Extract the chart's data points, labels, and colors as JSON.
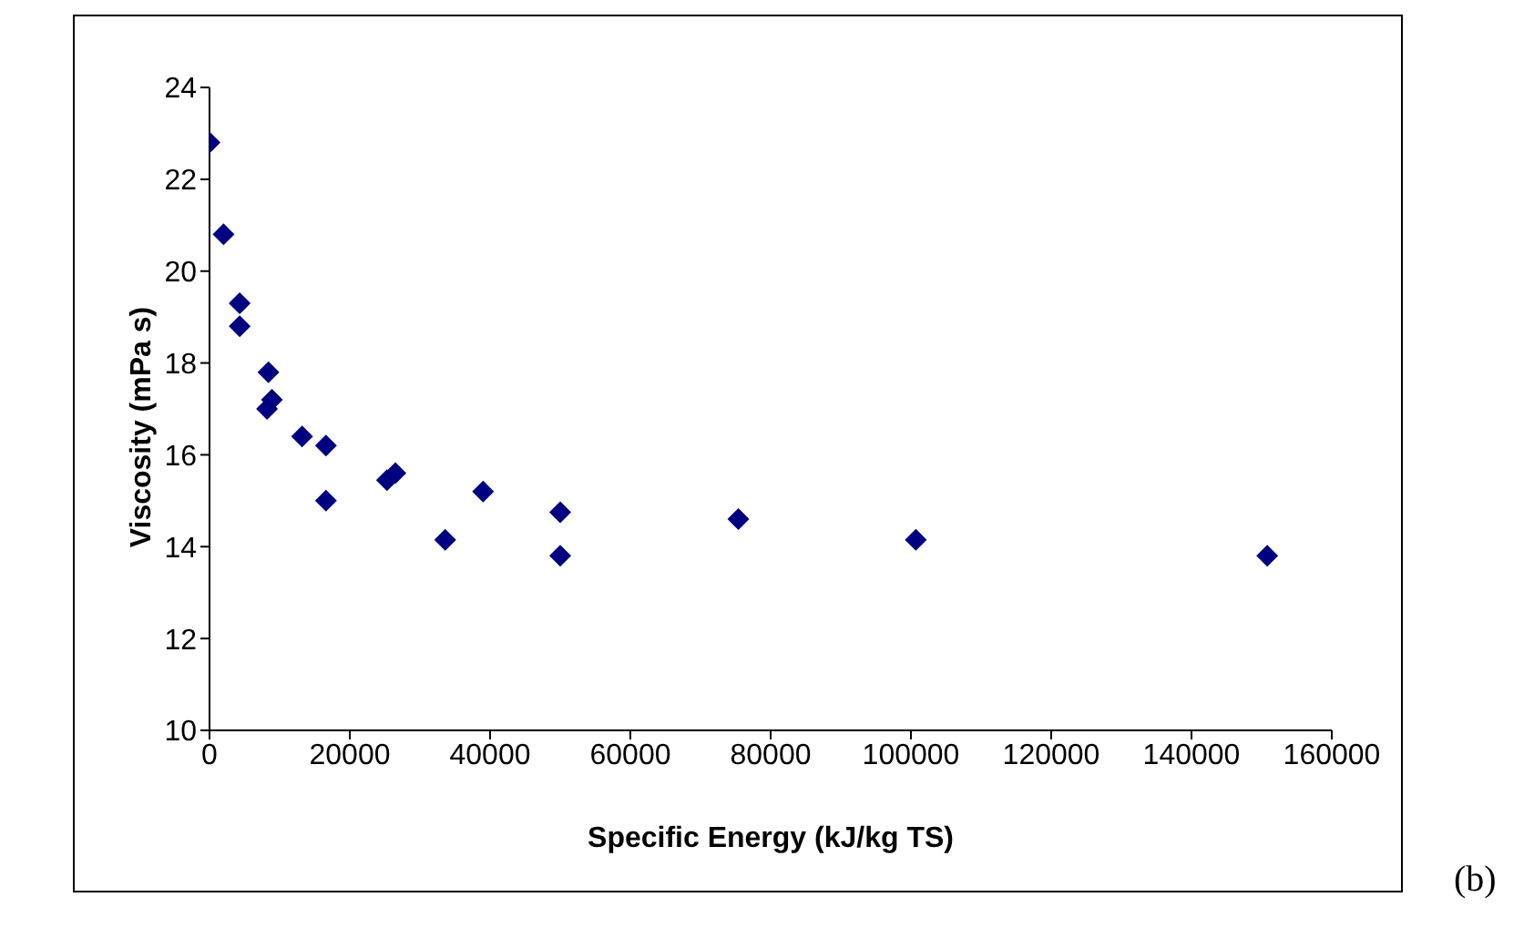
{
  "chart_data": {
    "type": "scatter",
    "xlabel": "Specific Energy (kJ/kg TS)",
    "ylabel": "Viscosity (mPa s)",
    "annotations": [
      "(b)"
    ],
    "x": [
      0,
      2000,
      4300,
      4300,
      8400,
      8900,
      8200,
      13200,
      16600,
      16600,
      25300,
      26500,
      33600,
      39000,
      50000,
      50000,
      75400,
      100700,
      150800
    ],
    "series": [
      {
        "color": "#000080",
        "values": [
          22.8,
          20.8,
          19.3,
          18.8,
          17.8,
          17.2,
          17.0,
          16.4,
          16.2,
          15.0,
          15.45,
          15.6,
          14.15,
          15.2,
          14.75,
          13.8,
          14.6,
          14.15,
          13.8
        ]
      }
    ],
    "xlim": [
      0,
      160000
    ],
    "xticks": [
      0,
      20000,
      40000,
      60000,
      80000,
      100000,
      120000,
      140000,
      160000
    ],
    "ylim": [
      10,
      24
    ],
    "yticks": [
      10,
      12,
      14,
      16,
      18,
      20,
      22,
      24
    ],
    "marker": "diamond",
    "grid": false,
    "legend": false
  }
}
